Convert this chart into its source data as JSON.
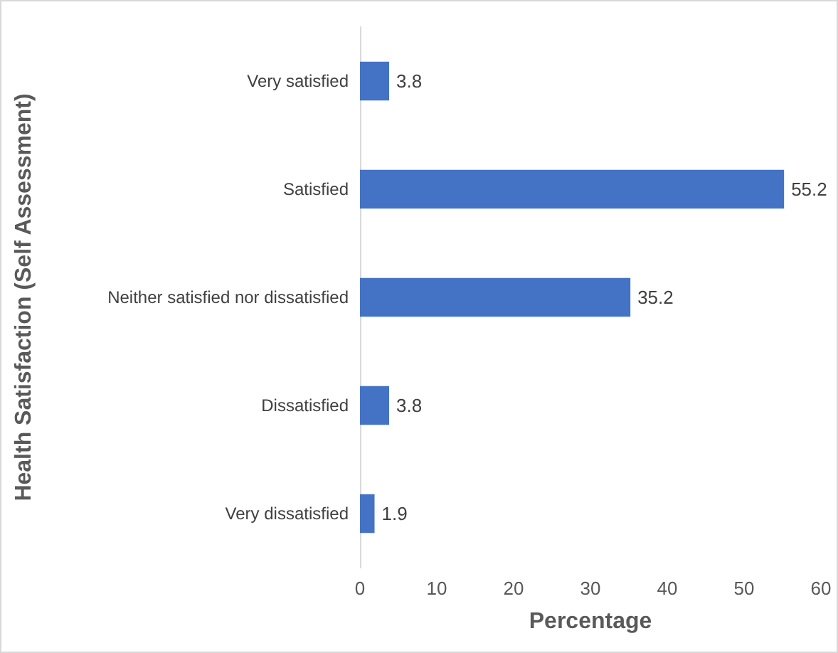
{
  "chart_data": {
    "type": "bar",
    "orientation": "horizontal",
    "xlabel": "Percentage",
    "ylabel": "Health Satisfaction (Self Assessment)",
    "categories": [
      "Very satisfied",
      "Satisfied",
      "Neither satisfied nor dissatisfied",
      "Dissatisfied",
      "Very dissatisfied"
    ],
    "values": [
      3.8,
      55.2,
      35.2,
      3.8,
      1.9
    ],
    "color": "#4472c4",
    "data_labels": true,
    "xlim": [
      0,
      60
    ],
    "xticks": [
      0,
      10,
      20,
      30,
      40,
      50,
      60
    ],
    "grid": false
  }
}
